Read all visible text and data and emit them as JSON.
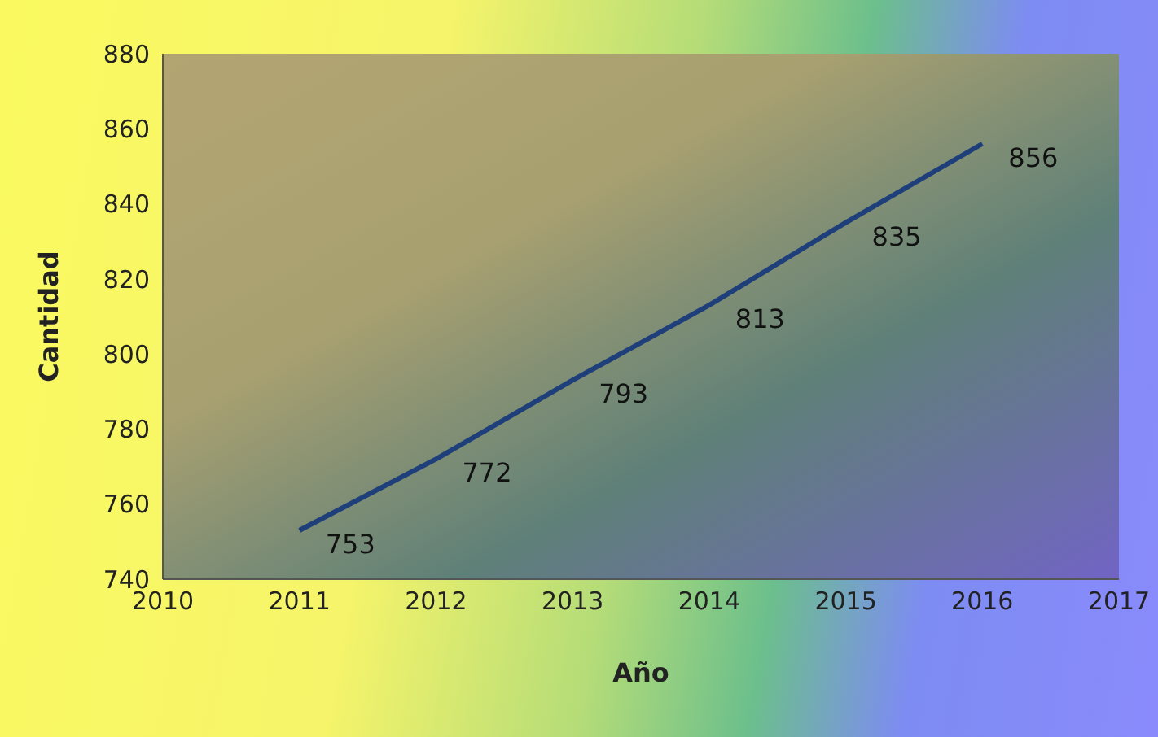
{
  "chart_data": {
    "type": "line",
    "xlabel": "Año",
    "ylabel": "Cantidad",
    "x": [
      2011,
      2012,
      2013,
      2014,
      2015,
      2016
    ],
    "series": [
      {
        "color": "#1f3f7a",
        "values": [
          753,
          772,
          793,
          813,
          835,
          856
        ]
      }
    ],
    "xlim": [
      2010,
      2017
    ],
    "xticks": [
      2010,
      2011,
      2012,
      2013,
      2014,
      2015,
      2016,
      2017
    ],
    "ylim": [
      740,
      880
    ],
    "yticks": [
      740,
      760,
      780,
      800,
      820,
      840,
      860,
      880
    ],
    "data_labels": true,
    "grid": false,
    "legend": false,
    "marker": "none",
    "line_style": "solid"
  }
}
